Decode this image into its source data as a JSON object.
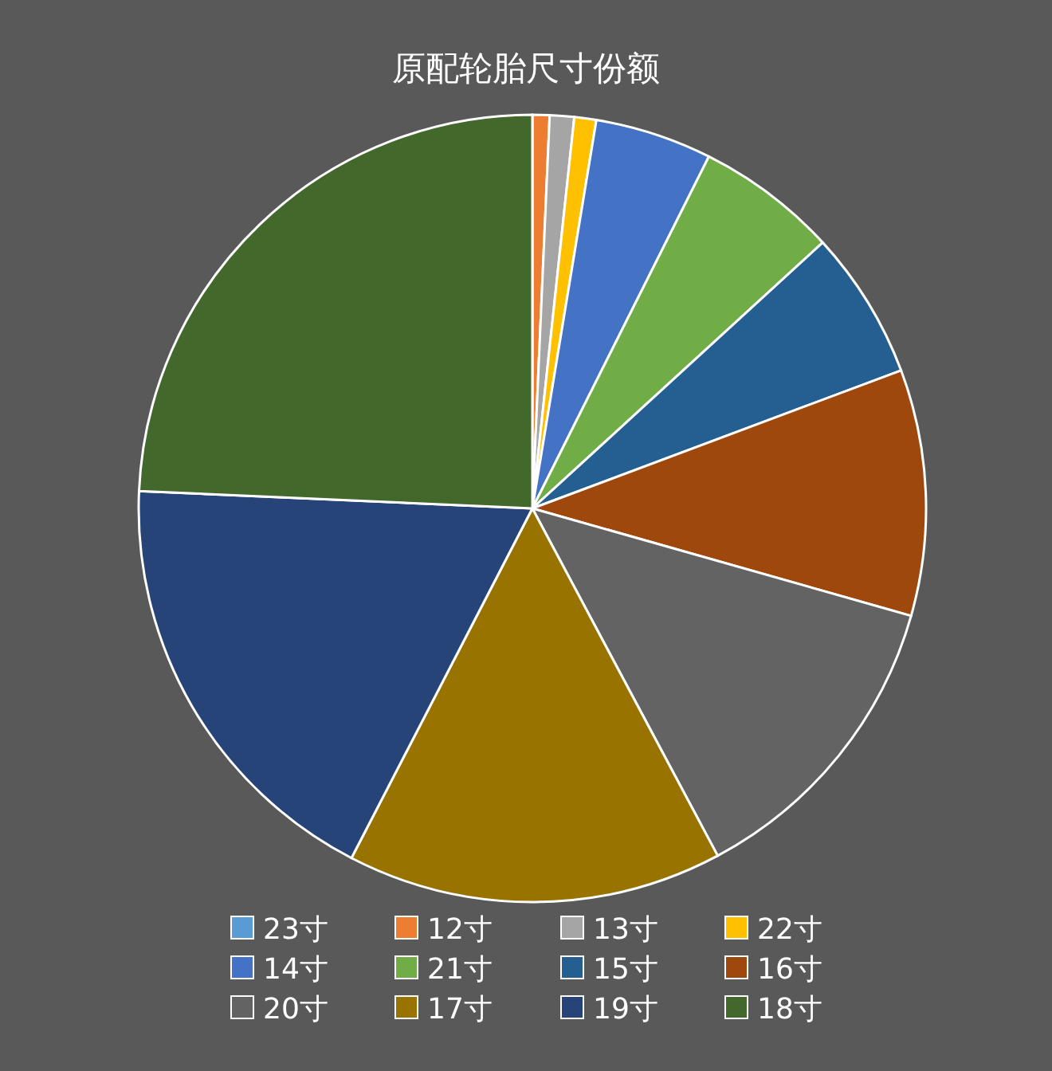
{
  "chart_data": {
    "type": "pie",
    "title": "原配轮胎尺寸份额",
    "legend": "bottom",
    "categories": [
      "23寸",
      "12寸",
      "13寸",
      "22寸",
      "14寸",
      "21寸",
      "15寸",
      "16寸",
      "20寸",
      "17寸",
      "19寸",
      "18寸"
    ],
    "values": [
      null,
      0.7,
      1.0,
      0.9,
      4.8,
      5.8,
      6.1,
      10.1,
      12.8,
      15.4,
      18.1,
      24.3
    ],
    "colors": [
      "#5b9bd5",
      "#ed7d31",
      "#a5a5a5",
      "#ffc000",
      "#4472c4",
      "#70ad47",
      "#255e91",
      "#9e480e",
      "#636363",
      "#997300",
      "#264478",
      "#43682b"
    ]
  }
}
